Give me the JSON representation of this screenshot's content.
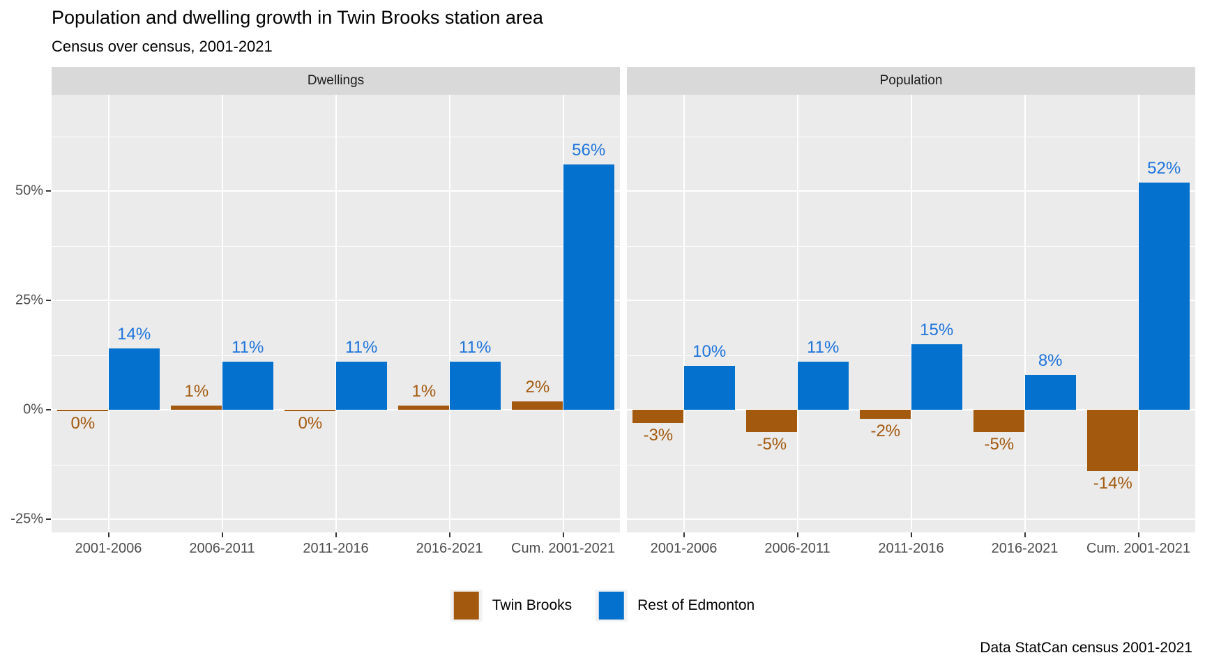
{
  "title": "Population and dwelling growth in Twin Brooks station area",
  "subtitle": "Census over census, 2001-2021",
  "caption": "Data StatCan census 2001-2021",
  "colors": {
    "twin_brooks_bar": "#A3590E",
    "twin_brooks_text": "#A3590E",
    "rest_of_edmonton_bar": "#0571CE",
    "rest_of_edmonton_text": "#1D74DC",
    "panel_background": "#EBEBEB",
    "strip_background": "#D9D9D9",
    "gridline": "#FFFFFF",
    "axis_text": "#4D4D4D",
    "tick_mark": "#333333"
  },
  "legend": {
    "items": [
      {
        "label": "Twin Brooks",
        "color": "#A3590E"
      },
      {
        "label": "Rest of Edmonton",
        "color": "#0571CE"
      }
    ]
  },
  "y_axis": {
    "tick_values": [
      50,
      25,
      0,
      -25
    ],
    "tick_labels": [
      "50%",
      "25%",
      "0%",
      "-25%"
    ],
    "minor_gridlines": [
      62.5,
      37.5,
      12.5,
      -12.5
    ],
    "ymax": 72,
    "ymin": -28,
    "unit": "percent"
  },
  "chart_data": {
    "type": "bar",
    "layout": "dodged, two facets, shared y axis",
    "grid": "white major and minor horizontal gridlines, white vertical gridlines at category centers, gray panel",
    "legend_position": "bottom center",
    "categories": [
      "2001-2006",
      "2006-2011",
      "2011-2016",
      "2016-2021",
      "Cum. 2001-2021"
    ],
    "facets": [
      {
        "name": "Dwellings",
        "series": [
          {
            "name": "Twin Brooks",
            "color": "#A3590E",
            "text_color": "#A3590E",
            "values": [
              0,
              1,
              0,
              1,
              2
            ],
            "labels": [
              "0%",
              "1%",
              "0%",
              "1%",
              "2%"
            ]
          },
          {
            "name": "Rest of Edmonton",
            "color": "#0571CE",
            "text_color": "#1D74DC",
            "values": [
              14,
              11,
              11,
              11,
              56
            ],
            "labels": [
              "14%",
              "11%",
              "11%",
              "11%",
              "56%"
            ]
          }
        ]
      },
      {
        "name": "Population",
        "series": [
          {
            "name": "Twin Brooks",
            "color": "#A3590E",
            "text_color": "#A3590E",
            "values": [
              -3,
              -5,
              -2,
              -5,
              -14
            ],
            "labels": [
              "-3%",
              "-5%",
              "-2%",
              "-5%",
              "-14%"
            ]
          },
          {
            "name": "Rest of Edmonton",
            "color": "#0571CE",
            "text_color": "#1D74DC",
            "values": [
              10,
              11,
              15,
              8,
              52
            ],
            "labels": [
              "10%",
              "11%",
              "15%",
              "8%",
              "52%"
            ]
          }
        ]
      }
    ]
  }
}
